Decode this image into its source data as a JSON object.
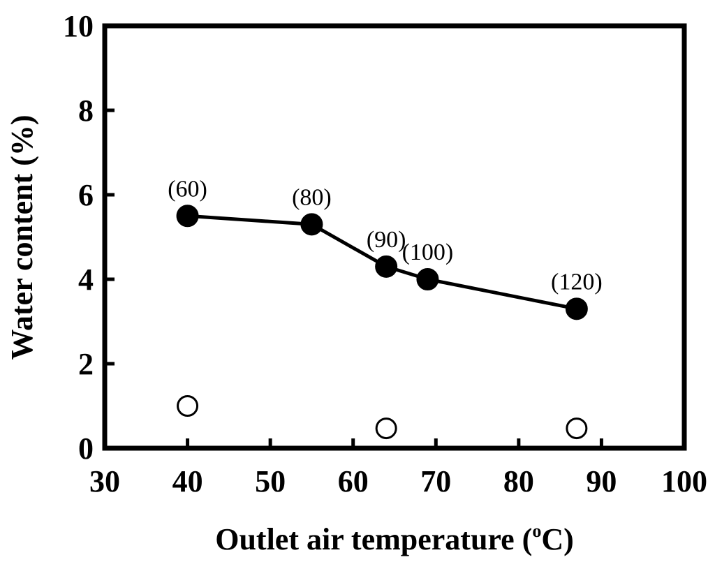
{
  "chart_data": {
    "type": "scatter",
    "xlabel": "Outlet air temperature (",
    "xlabel_degree": "o",
    "xlabel_unit": "C)",
    "ylabel": "Water content (%)",
    "xlim": [
      30,
      100
    ],
    "ylim": [
      0,
      10
    ],
    "x_ticks": [
      30,
      40,
      50,
      60,
      70,
      80,
      90,
      100
    ],
    "y_ticks": [
      0,
      2,
      4,
      6,
      8,
      10
    ],
    "grid": false,
    "series": [
      {
        "marker": "filled-circle",
        "line": true,
        "color": "#000000",
        "points": [
          {
            "x": 40,
            "y": 5.5,
            "label": "(60)"
          },
          {
            "x": 55,
            "y": 5.3,
            "label": "(80)"
          },
          {
            "x": 64,
            "y": 4.3,
            "label": "(90)"
          },
          {
            "x": 69,
            "y": 4.0,
            "label": "(100)"
          },
          {
            "x": 87,
            "y": 3.3,
            "label": "(120)"
          }
        ]
      },
      {
        "marker": "open-circle",
        "line": false,
        "color": "#000000",
        "points": [
          {
            "x": 40,
            "y": 1.0
          },
          {
            "x": 64,
            "y": 0.47
          },
          {
            "x": 87,
            "y": 0.47
          }
        ]
      }
    ]
  }
}
